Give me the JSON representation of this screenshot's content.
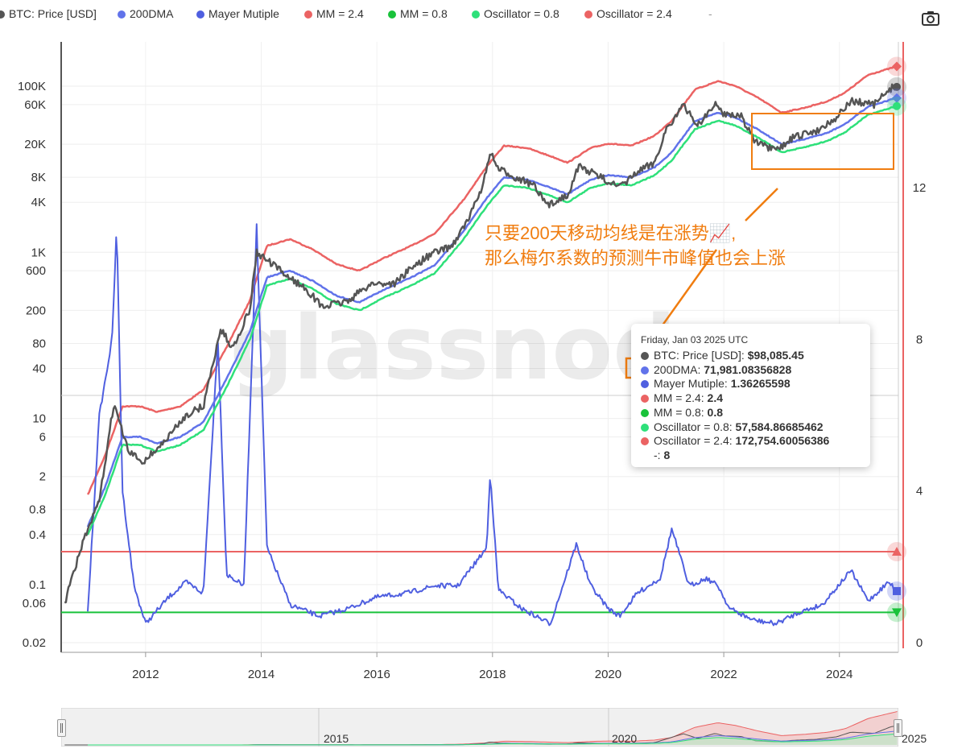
{
  "legend": [
    {
      "label": "BTC: Price [USD]",
      "color": "#555555"
    },
    {
      "label": "200DMA",
      "color": "#6173ea"
    },
    {
      "label": "Mayer Mutiple",
      "color": "#4f5fe0"
    },
    {
      "label": "MM = 2.4",
      "color": "#eb6363"
    },
    {
      "label": "MM = 0.8",
      "color": "#19c23a"
    },
    {
      "label": "Oscillator = 0.8",
      "color": "#2ee07a"
    },
    {
      "label": "Oscillator = 2.4",
      "color": "#eb6363"
    },
    {
      "label": "-",
      "color": "#999999"
    }
  ],
  "camera_icon": "camera-icon",
  "watermark": "glassnode",
  "tooltip": {
    "date": "Friday, Jan 03 2025 UTC",
    "rows": [
      {
        "label": "BTC: Price [USD]: ",
        "value": "$98,085.45",
        "color": "#555555"
      },
      {
        "label": "200DMA: ",
        "value": "71,981.08356828",
        "color": "#6173ea"
      },
      {
        "label": "Mayer Mutiple: ",
        "value": "1.36265598",
        "color": "#4f5fe0"
      },
      {
        "label": "MM = 2.4: ",
        "value": "2.4",
        "color": "#eb6363"
      },
      {
        "label": "MM = 0.8: ",
        "value": "0.8",
        "color": "#19c23a"
      },
      {
        "label": "Oscillator = 0.8: ",
        "value": "57,584.86685462",
        "color": "#2ee07a"
      },
      {
        "label": "Oscillator = 2.4: ",
        "value": "172,754.60056386",
        "color": "#eb6363"
      },
      {
        "label": "-: ",
        "value": "8",
        "color": null
      }
    ]
  },
  "annotation": {
    "line1": "只要200天移动均线是在涨势📈,",
    "line2": "那么梅尔系数的预测牛市峰值也会上涨",
    "color": "#f07d10"
  },
  "navigator": {
    "labels": [
      "2015",
      "2020",
      "2025"
    ]
  },
  "chart_data": {
    "type": "line",
    "x_range": [
      "2010-07-18",
      "2025-01-03"
    ],
    "left_axis": {
      "scale": "log",
      "ticks": [
        "100K",
        "60K",
        "20K",
        "8K",
        "4K",
        "1K",
        "600",
        "200",
        "80",
        "40",
        "10",
        "6",
        "2",
        "0.8",
        "0.4",
        "0.1",
        "0.06",
        "0.02"
      ]
    },
    "right_axis": {
      "scale": "linear",
      "range": [
        0,
        15
      ],
      "ticks": [
        "12",
        "8",
        "4",
        "0"
      ]
    },
    "x_ticks": [
      "2012",
      "2014",
      "2016",
      "2018",
      "2020",
      "2022",
      "2024"
    ],
    "grid": true,
    "legend_position": "top",
    "series": [
      {
        "name": "BTC: Price [USD]",
        "axis": "left",
        "color": "#555555",
        "x": [
          2010.6,
          2010.9,
          2011.2,
          2011.45,
          2011.7,
          2011.95,
          2012.3,
          2012.7,
          2013.0,
          2013.3,
          2013.5,
          2013.8,
          2013.92,
          2014.1,
          2014.4,
          2014.8,
          2015.05,
          2015.5,
          2015.9,
          2016.3,
          2016.6,
          2016.95,
          2017.3,
          2017.6,
          2017.85,
          2017.96,
          2018.1,
          2018.4,
          2018.7,
          2018.95,
          2019.3,
          2019.5,
          2019.8,
          2020.0,
          2020.2,
          2020.5,
          2020.8,
          2021.0,
          2021.3,
          2021.55,
          2021.85,
          2022.0,
          2022.3,
          2022.55,
          2022.9,
          2023.2,
          2023.6,
          2023.95,
          2024.2,
          2024.6,
          2024.9,
          2025.0
        ],
        "y": [
          0.06,
          0.3,
          1,
          15,
          4,
          3,
          5,
          11,
          14,
          120,
          70,
          200,
          1000,
          800,
          550,
          350,
          220,
          260,
          420,
          420,
          650,
          960,
          1200,
          2600,
          7000,
          16000,
          10000,
          8000,
          6500,
          3600,
          5000,
          11000,
          8500,
          7200,
          6000,
          9200,
          12000,
          30000,
          58000,
          34000,
          60000,
          47000,
          44000,
          21000,
          16500,
          24000,
          29000,
          42000,
          66000,
          60000,
          95000,
          98085
        ]
      },
      {
        "name": "200DMA",
        "axis": "left",
        "color": "#6173ea",
        "x": [
          2011.0,
          2011.3,
          2011.6,
          2011.9,
          2012.2,
          2012.6,
          2013.0,
          2013.4,
          2013.8,
          2014.1,
          2014.5,
          2014.9,
          2015.3,
          2015.7,
          2016.1,
          2016.6,
          2017.0,
          2017.5,
          2017.9,
          2018.2,
          2018.6,
          2019.0,
          2019.3,
          2019.7,
          2020.0,
          2020.4,
          2020.8,
          2021.1,
          2021.5,
          2021.9,
          2022.2,
          2022.6,
          2023.0,
          2023.4,
          2023.8,
          2024.1,
          2024.5,
          2024.9,
          2025.0
        ],
        "y": [
          0.5,
          1.5,
          6,
          6,
          5,
          6,
          9,
          30,
          110,
          500,
          600,
          450,
          300,
          250,
          350,
          500,
          700,
          1800,
          4500,
          8000,
          7500,
          6000,
          5000,
          7500,
          8500,
          8000,
          10500,
          16000,
          38000,
          48000,
          42000,
          30000,
          20000,
          23000,
          27500,
          35000,
          57000,
          69000,
          71981
        ]
      },
      {
        "name": "Oscillator = 2.4",
        "axis": "left",
        "color": "#eb6363",
        "x": [
          2011.0,
          2011.3,
          2011.6,
          2011.9,
          2012.2,
          2012.6,
          2013.0,
          2013.4,
          2013.8,
          2014.1,
          2014.5,
          2014.9,
          2015.3,
          2015.7,
          2016.1,
          2016.6,
          2017.0,
          2017.5,
          2017.9,
          2018.2,
          2018.6,
          2019.0,
          2019.3,
          2019.7,
          2020.0,
          2020.4,
          2020.8,
          2021.1,
          2021.5,
          2021.9,
          2022.2,
          2022.6,
          2023.0,
          2023.4,
          2023.8,
          2024.1,
          2024.5,
          2024.9,
          2025.0
        ],
        "y": [
          1.2,
          3.6,
          14,
          14,
          12,
          14,
          22,
          72,
          260,
          1200,
          1440,
          1080,
          720,
          600,
          840,
          1200,
          1680,
          4300,
          10800,
          19200,
          18000,
          14400,
          12000,
          18000,
          20400,
          19200,
          25200,
          38400,
          91000,
          115000,
          100800,
          72000,
          48000,
          55000,
          66000,
          84000,
          137000,
          165600,
          172754
        ]
      },
      {
        "name": "Oscillator = 0.8",
        "axis": "left",
        "color": "#2ee07a",
        "x": [
          2011.0,
          2011.3,
          2011.6,
          2011.9,
          2012.2,
          2012.6,
          2013.0,
          2013.4,
          2013.8,
          2014.1,
          2014.5,
          2014.9,
          2015.3,
          2015.7,
          2016.1,
          2016.6,
          2017.0,
          2017.5,
          2017.9,
          2018.2,
          2018.6,
          2019.0,
          2019.3,
          2019.7,
          2020.0,
          2020.4,
          2020.8,
          2021.1,
          2021.5,
          2021.9,
          2022.2,
          2022.6,
          2023.0,
          2023.4,
          2023.8,
          2024.1,
          2024.5,
          2024.9,
          2025.0
        ],
        "y": [
          0.4,
          1.2,
          4.8,
          4.8,
          4,
          4.8,
          7.2,
          24,
          88,
          400,
          480,
          360,
          240,
          200,
          280,
          400,
          560,
          1440,
          3600,
          6400,
          6000,
          4800,
          4000,
          6000,
          6800,
          6400,
          8400,
          12800,
          30400,
          38400,
          33600,
          24000,
          16000,
          18400,
          22000,
          28000,
          45600,
          55200,
          57584
        ]
      },
      {
        "name": "Mayer Mutiple",
        "axis": "right",
        "color": "#4f5fe0",
        "x": [
          2011.0,
          2011.2,
          2011.42,
          2011.5,
          2011.6,
          2011.8,
          2012.0,
          2012.4,
          2012.7,
          2013.0,
          2013.25,
          2013.4,
          2013.7,
          2013.92,
          2014.1,
          2014.5,
          2015.0,
          2015.5,
          2016.0,
          2016.5,
          2017.0,
          2017.4,
          2017.9,
          2017.96,
          2018.1,
          2018.5,
          2019.0,
          2019.45,
          2019.7,
          2020.0,
          2020.2,
          2020.5,
          2020.9,
          2021.1,
          2021.4,
          2021.7,
          2021.9,
          2022.1,
          2022.5,
          2022.9,
          2023.3,
          2023.7,
          2024.2,
          2024.5,
          2024.85,
          2025.0
        ],
        "y": [
          0.8,
          6,
          8,
          11,
          4,
          1.5,
          0.5,
          1.2,
          1.6,
          1.3,
          8,
          1.8,
          1.5,
          11,
          2.5,
          1.0,
          0.7,
          0.9,
          1.2,
          1.3,
          1.5,
          1.5,
          2.5,
          4.5,
          1.4,
          0.9,
          0.5,
          2.6,
          1.5,
          0.9,
          0.7,
          1.3,
          1.7,
          3.0,
          1.5,
          1.7,
          1.5,
          0.9,
          0.6,
          0.5,
          0.8,
          1.0,
          1.9,
          1.1,
          1.6,
          1.36
        ]
      }
    ],
    "reference_lines": [
      {
        "name": "MM = 2.4",
        "axis": "right",
        "value": 2.4,
        "color": "#eb6363"
      },
      {
        "name": "MM = 0.8",
        "axis": "right",
        "value": 0.8,
        "color": "#19c23a"
      }
    ]
  }
}
